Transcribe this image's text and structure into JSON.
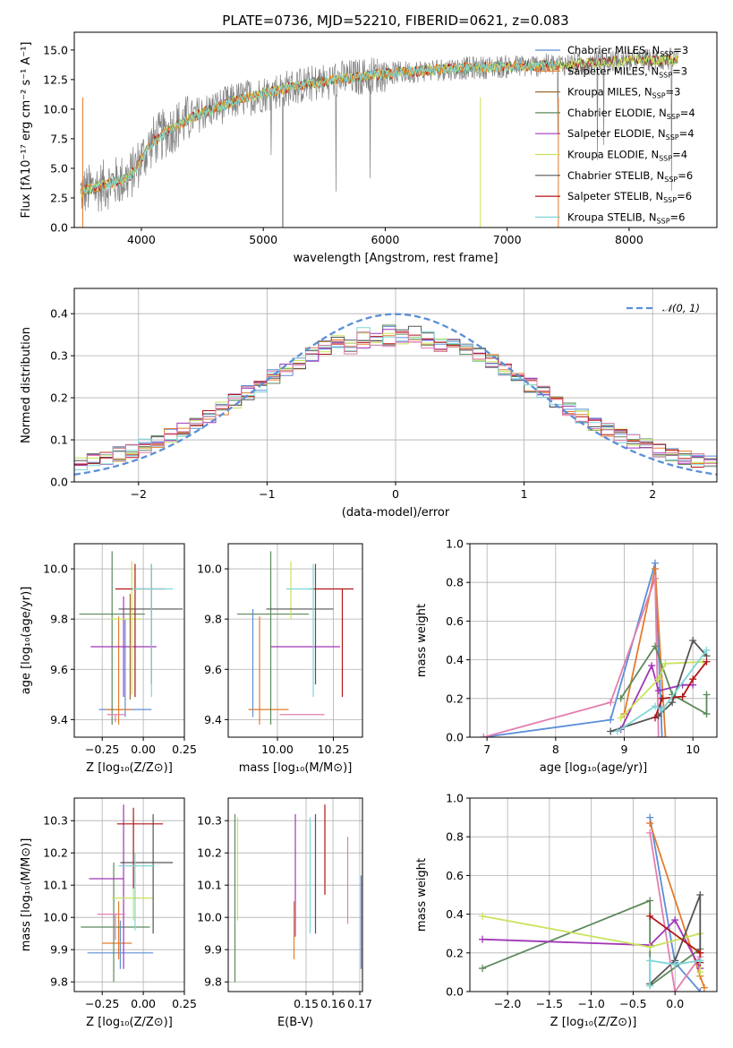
{
  "title": "PLATE=0736, MJD=52210, FIBERID=0621, z=0.083",
  "colors": {
    "Chabrier MILES": "#5b8fd8",
    "Salpeter MILES": "#e37c2c",
    "Kroupa MILES": "#9a6b2e",
    "Chabrier ELODIE": "#5c8a5c",
    "Salpeter ELODIE": "#a136b8",
    "Kroupa ELODIE": "#c9e35d",
    "Chabrier STELIB": "#555555",
    "Salpeter STELIB": "#b21515",
    "Kroupa STELIB": "#7ed6d6",
    "pink": "#e27fb0",
    "data": "#808080"
  },
  "chart_data": [
    {
      "id": "spectrum",
      "type": "line",
      "xlabel": "wavelength [Angstrom, rest frame]",
      "ylabel": "Flux [fλ10⁻¹⁷ erg cm⁻² s⁻¹ A⁻¹]",
      "xlim": [
        3450,
        8720
      ],
      "ylim": [
        0,
        16.5
      ],
      "xticks": [
        "4000",
        "5000",
        "6000",
        "7000",
        "8000"
      ],
      "yticks": [
        "0.0",
        "2.5",
        "5.0",
        "7.5",
        "10.0",
        "12.5",
        "15.0"
      ],
      "legend": [
        "Chabrier MILES, N_SSP=3",
        "Salpeter MILES, N_SSP=3",
        "Kroupa MILES, N_SSP=3",
        "Chabrier ELODIE, N_SSP=4",
        "Salpeter ELODIE, N_SSP=4",
        "Kroupa ELODIE, N_SSP=4",
        "Chabrier STELIB, N_SSP=6",
        "Salpeter STELIB, N_SSP=6",
        "Kroupa STELIB, N_SSP=6"
      ],
      "legend_position": "right",
      "continuum": {
        "wavelength": [
          3500,
          3700,
          3900,
          4000,
          4100,
          4300,
          4500,
          4800,
          5200,
          5600,
          6000,
          6500,
          7000,
          7500,
          8000,
          8400
        ],
        "flux": [
          3.0,
          3.6,
          4.2,
          5.8,
          7.3,
          8.7,
          9.7,
          10.8,
          11.8,
          12.5,
          13.0,
          13.4,
          13.6,
          13.8,
          14.1,
          14.2
        ]
      }
    },
    {
      "id": "residuals",
      "type": "line",
      "xlabel": "(data-model)/error",
      "ylabel": "Normed distribution",
      "xlim": [
        -2.5,
        2.5
      ],
      "ylim": [
        0,
        0.46
      ],
      "xticks": [
        "−2",
        "−1",
        "0",
        "1",
        "2"
      ],
      "yticks": [
        "0.0",
        "0.1",
        "0.2",
        "0.3",
        "0.4"
      ],
      "legend": [
        "𝒩(0, 1)"
      ],
      "legend_position": "upper right",
      "grid": true,
      "gaussian": {
        "mean": 0,
        "sigma": 1
      }
    },
    {
      "id": "age-vs-Z",
      "type": "scatter",
      "xlabel": "Z [log₁₀(Z/Z⊙)]",
      "ylabel": "age  [log₁₀(age/yr)]",
      "xlim": [
        -0.42,
        0.25
      ],
      "ylim": [
        9.33,
        10.1
      ],
      "xticks": [
        "−0.25",
        "0.00",
        "0.25"
      ],
      "yticks": [
        "9.4",
        "9.6",
        "9.8",
        "10.0"
      ],
      "grid": true,
      "points": [
        {
          "model": "Chabrier MILES",
          "x": -0.11,
          "xerr": [
            0.16,
            0.16
          ],
          "y": 9.44,
          "yerr": [
            0.03,
            0.36
          ]
        },
        {
          "model": "Salpeter MILES",
          "x": -0.15,
          "xerr": [
            0.08,
            0.08
          ],
          "y": 9.44,
          "yerr": [
            0.06,
            0.37
          ]
        },
        {
          "model": "Chabrier ELODIE",
          "x": -0.19,
          "xerr": [
            0.2,
            0.2
          ],
          "y": 9.82,
          "yerr": [
            0.44,
            0.25
          ]
        },
        {
          "model": "Salpeter ELODIE",
          "x": -0.12,
          "xerr": [
            0.2,
            0.2
          ],
          "y": 9.69,
          "yerr": [
            0.2,
            0.2
          ]
        },
        {
          "model": "Kroupa ELODIE",
          "x": -0.07,
          "xerr": [
            0.13,
            0.06
          ],
          "y": 9.8,
          "yerr": [
            0.3,
            0.23
          ]
        },
        {
          "model": "Chabrier STELIB",
          "x": 0.05,
          "xerr": [
            0.2,
            0.19
          ],
          "y": 9.84,
          "yerr": [
            0.3,
            0.18
          ]
        },
        {
          "model": "Salpeter STELIB",
          "x": -0.05,
          "xerr": [
            0.12,
            0.18
          ],
          "y": 9.92,
          "yerr": [
            0.43,
            0.1
          ]
        },
        {
          "model": "Kroupa STELIB",
          "x": 0.05,
          "xerr": [
            0.12,
            0.13
          ],
          "y": 9.92,
          "yerr": [
            0.43,
            0.1
          ]
        },
        {
          "model": "pink",
          "x": -0.17,
          "xerr": [
            0.05,
            0.06
          ],
          "y": 9.42,
          "yerr": [
            0.03,
            0.0
          ]
        },
        {
          "model": "Kroupa MILES",
          "x": -0.08,
          "xerr": [
            0.0,
            0.0
          ],
          "y": 9.6,
          "yerr": [
            0.12,
            0.3
          ]
        }
      ]
    },
    {
      "id": "age-vs-mass",
      "type": "scatter",
      "xlabel": "mass [log₁₀(M/M⊙)]",
      "ylabel": "",
      "xlim": [
        9.78,
        10.38
      ],
      "ylim": [
        9.33,
        10.1
      ],
      "xticks": [
        "10.00",
        "10.25"
      ],
      "yticks": [
        "9.4",
        "9.6",
        "9.8",
        "10.0"
      ],
      "grid": true,
      "points": [
        {
          "model": "Chabrier MILES",
          "x": 9.89,
          "xerr": [
            0.0,
            0.0
          ],
          "y": 9.44,
          "yerr": [
            0.03,
            0.4
          ]
        },
        {
          "model": "Salpeter MILES",
          "x": 9.92,
          "xerr": [
            0.05,
            0.13
          ],
          "y": 9.44,
          "yerr": [
            0.06,
            0.37
          ]
        },
        {
          "model": "Chabrier ELODIE",
          "x": 9.97,
          "xerr": [
            0.15,
            0.17
          ],
          "y": 9.82,
          "yerr": [
            0.44,
            0.25
          ]
        },
        {
          "model": "Salpeter ELODIE",
          "x": 10.12,
          "xerr": [
            0.15,
            0.16
          ],
          "y": 9.69,
          "yerr": [
            0.0,
            0.0
          ]
        },
        {
          "model": "Kroupa ELODIE",
          "x": 10.06,
          "xerr": [
            0.0,
            0.0
          ],
          "y": 9.8,
          "yerr": [
            0.0,
            0.23
          ]
        },
        {
          "model": "Chabrier STELIB",
          "x": 10.17,
          "xerr": [
            0.22,
            0.08
          ],
          "y": 9.84,
          "yerr": [
            0.3,
            0.18
          ]
        },
        {
          "model": "Salpeter STELIB",
          "x": 10.29,
          "xerr": [
            0.15,
            0.05
          ],
          "y": 9.92,
          "yerr": [
            0.43,
            0.0
          ]
        },
        {
          "model": "Kroupa STELIB",
          "x": 10.16,
          "xerr": [
            0.12,
            0.0
          ],
          "y": 9.92,
          "yerr": [
            0.43,
            0.1
          ]
        },
        {
          "model": "pink",
          "x": 10.01,
          "xerr": [
            0.0,
            0.2
          ],
          "y": 9.42,
          "yerr": [
            0.0,
            0.0
          ]
        }
      ]
    },
    {
      "id": "weight-vs-age",
      "type": "line",
      "xlabel": "age  [log₁₀(age/yr)]",
      "ylabel": "mass weight",
      "xlim": [
        6.75,
        10.35
      ],
      "ylim": [
        0,
        1.0
      ],
      "xticks": [
        "7",
        "8",
        "9",
        "10"
      ],
      "yticks": [
        "0.0",
        "0.2",
        "0.4",
        "0.6",
        "0.8",
        "1.0"
      ],
      "grid": true,
      "series": [
        {
          "model": "Chabrier MILES",
          "x": [
            6.95,
            8.8,
            9.45,
            9.55
          ],
          "y": [
            0.0,
            0.09,
            0.9,
            0.0
          ]
        },
        {
          "model": "Salpeter MILES",
          "x": [
            9.0,
            9.45,
            9.6
          ],
          "y": [
            0.12,
            0.87,
            0.0
          ]
        },
        {
          "model": "pink",
          "x": [
            6.95,
            8.8,
            9.45,
            9.5
          ],
          "y": [
            0.0,
            0.18,
            0.82,
            0.0
          ]
        },
        {
          "model": "Chabrier ELODIE",
          "x": [
            8.95,
            9.45,
            9.7,
            10.2,
            10.2
          ],
          "y": [
            0.2,
            0.47,
            0.22,
            0.12,
            0.22
          ]
        },
        {
          "model": "Salpeter ELODIE",
          "x": [
            8.95,
            9.4,
            9.5,
            9.85,
            10.0
          ],
          "y": [
            0.04,
            0.37,
            0.24,
            0.27,
            0.27
          ]
        },
        {
          "model": "Kroupa ELODIE",
          "x": [
            8.95,
            9.5,
            9.6,
            10.15
          ],
          "y": [
            0.1,
            0.3,
            0.38,
            0.39
          ]
        },
        {
          "model": "Chabrier STELIB",
          "x": [
            8.8,
            9.5,
            9.7,
            10.0,
            10.2
          ],
          "y": [
            0.03,
            0.11,
            0.18,
            0.5,
            0.42
          ]
        },
        {
          "model": "Salpeter STELIB",
          "x": [
            9.45,
            9.55,
            9.85,
            10.0,
            10.2
          ],
          "y": [
            0.1,
            0.2,
            0.21,
            0.3,
            0.39
          ]
        },
        {
          "model": "Kroupa STELIB",
          "x": [
            8.9,
            9.45,
            9.55,
            10.2
          ],
          "y": [
            0.03,
            0.16,
            0.14,
            0.45
          ]
        }
      ]
    },
    {
      "id": "mass-vs-Z",
      "type": "scatter",
      "xlabel": "Z [log₁₀(Z/Z⊙)]",
      "ylabel": "mass [log₁₀(M/M⊙)]",
      "xlim": [
        -0.42,
        0.25
      ],
      "ylim": [
        9.77,
        10.37
      ],
      "xticks": [
        "−0.25",
        "0.00",
        "0.25"
      ],
      "yticks": [
        "9.8",
        "9.9",
        "10.0",
        "10.1",
        "10.2",
        "10.3"
      ],
      "grid": true,
      "points": [
        {
          "model": "Chabrier MILES",
          "x": -0.14,
          "xerr": [
            0.2,
            0.2
          ],
          "y": 9.89,
          "yerr": [
            0.05,
            0.1
          ]
        },
        {
          "model": "Salpeter MILES",
          "x": -0.15,
          "xerr": [
            0.1,
            0.08
          ],
          "y": 9.92,
          "yerr": [
            0.05,
            0.13
          ]
        },
        {
          "model": "Chabrier ELODIE",
          "x": -0.18,
          "xerr": [
            0.2,
            0.22
          ],
          "y": 9.97,
          "yerr": [
            0.17,
            0.2
          ]
        },
        {
          "model": "Salpeter ELODIE",
          "x": -0.12,
          "xerr": [
            0.21,
            0.0
          ],
          "y": 10.12,
          "yerr": [
            0.28,
            0.23
          ]
        },
        {
          "model": "Kroupa ELODIE",
          "x": -0.06,
          "xerr": [
            0.13,
            0.12
          ],
          "y": 10.06,
          "yerr": [
            0.07,
            0.25
          ]
        },
        {
          "model": "Chabrier STELIB",
          "x": 0.06,
          "xerr": [
            0.2,
            0.12
          ],
          "y": 10.17,
          "yerr": [
            0.22,
            0.15
          ]
        },
        {
          "model": "Salpeter STELIB",
          "x": -0.06,
          "xerr": [
            0.1,
            0.18
          ],
          "y": 10.29,
          "yerr": [
            0.2,
            0.05
          ]
        },
        {
          "model": "Kroupa STELIB",
          "x": -0.05,
          "xerr": [
            0.1,
            0.12
          ],
          "y": 10.16,
          "yerr": [
            0.2,
            0.04
          ]
        },
        {
          "model": "pink",
          "x": -0.17,
          "xerr": [
            0.11,
            0.06
          ],
          "y": 10.01,
          "yerr": [
            0.08,
            0.0
          ]
        }
      ]
    },
    {
      "id": "mass-vs-EBV",
      "type": "scatter",
      "xlabel": "E(B-V)",
      "ylabel": "",
      "xlim": [
        0.121,
        0.171
      ],
      "ylim": [
        9.77,
        10.37
      ],
      "xticks": [
        "0.15",
        "0.16",
        "0.17"
      ],
      "yticks": [
        "9.8",
        "9.9",
        "10.0",
        "10.1",
        "10.2",
        "10.3"
      ],
      "grid": true,
      "points": [
        {
          "model": "Chabrier ELODIE",
          "x": 0.1235,
          "y": 10.07,
          "yerr": [
            0.27,
            0.25
          ]
        },
        {
          "model": "Kroupa ELODIE",
          "x": 0.1245,
          "y": 10.06,
          "yerr": [
            0.07,
            0.25
          ]
        },
        {
          "model": "Salpeter MILES",
          "x": 0.1455,
          "y": 9.92,
          "yerr": [
            0.05,
            0.13
          ]
        },
        {
          "model": "Salpeter ELODIE",
          "x": 0.146,
          "y": 10.12,
          "yerr": [
            0.18,
            0.2
          ]
        },
        {
          "model": "Kroupa STELIB",
          "x": 0.1515,
          "y": 10.16,
          "yerr": [
            0.21,
            0.15
          ]
        },
        {
          "model": "Chabrier STELIB",
          "x": 0.1535,
          "y": 10.17,
          "yerr": [
            0.22,
            0.15
          ]
        },
        {
          "model": "Salpeter STELIB",
          "x": 0.157,
          "y": 10.2,
          "yerr": [
            0.13,
            0.15
          ]
        },
        {
          "model": "pink",
          "x": 0.1655,
          "y": 10.1,
          "yerr": [
            0.12,
            0.15
          ]
        },
        {
          "model": "Chabrier MILES",
          "x": 0.1705,
          "y": 9.98,
          "yerr": [
            0.14,
            0.15
          ]
        }
      ]
    },
    {
      "id": "weight-vs-Z",
      "type": "line",
      "xlabel": "Z [log₁₀(Z/Z⊙)]",
      "ylabel": "mass weight",
      "xlim": [
        -2.45,
        0.5
      ],
      "ylim": [
        0,
        1.0
      ],
      "xticks": [
        "−2.0",
        "−1.5",
        "−1.0",
        "−0.5",
        "0.0"
      ],
      "yticks": [
        "0.0",
        "0.2",
        "0.4",
        "0.6",
        "0.8",
        "1.0"
      ],
      "grid": true,
      "series": [
        {
          "model": "Chabrier MILES",
          "x": [
            -0.3,
            0.0,
            0.3
          ],
          "y": [
            0.9,
            0.15,
            0.0
          ]
        },
        {
          "model": "Salpeter MILES",
          "x": [
            -0.3,
            0.3,
            0.35
          ],
          "y": [
            0.87,
            0.08,
            0.02
          ]
        },
        {
          "model": "pink",
          "x": [
            -0.3,
            0.0,
            0.3
          ],
          "y": [
            0.82,
            0.0,
            0.18
          ]
        },
        {
          "model": "Chabrier ELODIE",
          "x": [
            -2.3,
            -0.3,
            -0.3,
            0.3
          ],
          "y": [
            0.12,
            0.47,
            0.03,
            0.22
          ]
        },
        {
          "model": "Salpeter ELODIE",
          "x": [
            -2.3,
            -0.3,
            0.0,
            0.3
          ],
          "y": [
            0.27,
            0.24,
            0.37,
            0.12
          ]
        },
        {
          "model": "Kroupa ELODIE",
          "x": [
            -2.3,
            -0.3,
            0.3,
            0.3
          ],
          "y": [
            0.39,
            0.23,
            0.3,
            0.1
          ]
        },
        {
          "model": "Chabrier STELIB",
          "x": [
            -0.3,
            0.0,
            0.3,
            0.3
          ],
          "y": [
            0.04,
            0.16,
            0.5,
            0.2
          ]
        },
        {
          "model": "Salpeter STELIB",
          "x": [
            -0.3,
            0.3,
            0.3
          ],
          "y": [
            0.39,
            0.2,
            0.15
          ]
        },
        {
          "model": "Kroupa STELIB",
          "x": [
            -0.3,
            -0.3,
            0.0,
            0.3
          ],
          "y": [
            0.03,
            0.16,
            0.14,
            0.16
          ]
        }
      ]
    }
  ]
}
